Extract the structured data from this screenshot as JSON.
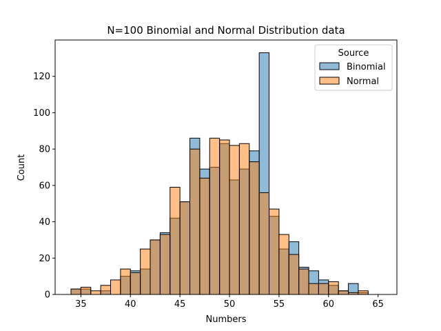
{
  "chart_data": {
    "type": "bar",
    "title": "N=100 Binomial and Normal Distribution data",
    "xlabel": "Numbers",
    "ylabel": "Count",
    "xlim": [
      32.4,
      66.9
    ],
    "ylim": [
      0,
      140
    ],
    "xticks": [
      35,
      40,
      45,
      50,
      55,
      60,
      65
    ],
    "yticks": [
      0,
      20,
      40,
      60,
      80,
      100,
      120
    ],
    "bin_edges": [
      34,
      35,
      36,
      37,
      38,
      39,
      40,
      41,
      42,
      43,
      44,
      45,
      46,
      47,
      48,
      49,
      50,
      51,
      52,
      53,
      54,
      55,
      56,
      57,
      58,
      59,
      60,
      61,
      62,
      63,
      64,
      65,
      66
    ],
    "legend": {
      "title": "Source",
      "placement": "upper right"
    },
    "grid": false,
    "series": [
      {
        "name": "Binomial",
        "color": "#1f77b4",
        "values": [
          3,
          3,
          0,
          2,
          0,
          10,
          13,
          14,
          30,
          34,
          42,
          51,
          86,
          69,
          70,
          83,
          63,
          69,
          79,
          133,
          43,
          25,
          29,
          15,
          13,
          8,
          5,
          2,
          6,
          1,
          0,
          0
        ]
      },
      {
        "name": "Normal",
        "color": "#ff7f0e",
        "values": [
          3,
          4,
          2,
          5,
          8,
          14,
          12,
          25,
          30,
          33,
          59,
          51,
          80,
          64,
          86,
          85,
          82,
          83,
          73,
          56,
          47,
          33,
          22,
          14,
          6,
          6,
          7,
          2,
          1,
          2,
          0,
          0
        ]
      }
    ]
  }
}
